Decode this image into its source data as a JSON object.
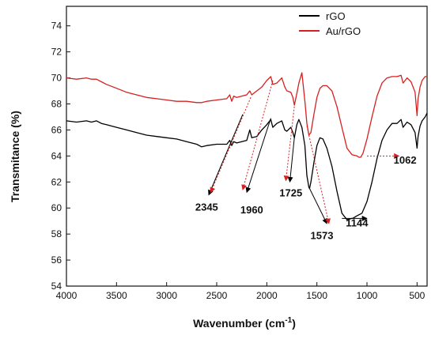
{
  "chart_data": {
    "type": "line",
    "xlabel": "Wavenumber (cm",
    "xlabel_sup": "-1",
    "xlabel_close": ")",
    "ylabel": "Transmitance (%)",
    "xlim": [
      4000,
      400
    ],
    "ylim": [
      54,
      75.5
    ],
    "x_reversed": true,
    "xticks": [
      4000,
      3500,
      3000,
      2500,
      2000,
      1500,
      1000,
      500
    ],
    "yticks": [
      54,
      56,
      58,
      60,
      62,
      64,
      66,
      68,
      70,
      72,
      74
    ],
    "grid": false,
    "legend_position": "top-right",
    "series": [
      {
        "name": "rGO",
        "color": "#000000",
        "x": [
          4000,
          3900,
          3800,
          3750,
          3700,
          3650,
          3600,
          3500,
          3400,
          3300,
          3200,
          3100,
          3000,
          2900,
          2800,
          2700,
          2650,
          2600,
          2500,
          2400,
          2370,
          2350,
          2330,
          2300,
          2200,
          2170,
          2150,
          2100,
          2050,
          2000,
          1960,
          1940,
          1900,
          1850,
          1820,
          1800,
          1760,
          1740,
          1725,
          1700,
          1680,
          1650,
          1620,
          1600,
          1580,
          1573,
          1560,
          1530,
          1500,
          1470,
          1440,
          1400,
          1350,
          1300,
          1250,
          1200,
          1150,
          1144,
          1100,
          1050,
          1000,
          950,
          900,
          850,
          800,
          750,
          700,
          660,
          640,
          600,
          560,
          520,
          500,
          490,
          470,
          450,
          420,
          400
        ],
        "y": [
          66.7,
          66.6,
          66.7,
          66.6,
          66.7,
          66.5,
          66.4,
          66.2,
          66.0,
          65.8,
          65.6,
          65.5,
          65.4,
          65.3,
          65.1,
          64.9,
          64.7,
          64.8,
          64.9,
          64.9,
          65.2,
          64.8,
          65.1,
          65.0,
          65.2,
          66.0,
          65.4,
          65.5,
          66.0,
          66.4,
          66.8,
          66.2,
          66.5,
          66.7,
          66.0,
          65.9,
          66.2,
          65.8,
          65.4,
          66.4,
          66.8,
          66.2,
          64.8,
          62.5,
          61.6,
          61.5,
          62.0,
          63.5,
          64.8,
          65.4,
          65.3,
          64.6,
          63.2,
          61.3,
          59.6,
          59.1,
          59.2,
          59.2,
          59.4,
          59.6,
          60.5,
          62.0,
          63.8,
          65.2,
          66.0,
          66.5,
          66.5,
          66.8,
          66.2,
          66.6,
          66.4,
          65.8,
          64.6,
          65.5,
          66.3,
          66.7,
          67.0,
          67.3
        ]
      },
      {
        "name": "Au/rGO",
        "color": "#d62020",
        "x": [
          4000,
          3900,
          3800,
          3750,
          3700,
          3650,
          3600,
          3500,
          3400,
          3300,
          3200,
          3100,
          3000,
          2900,
          2800,
          2700,
          2650,
          2600,
          2500,
          2400,
          2370,
          2350,
          2330,
          2300,
          2200,
          2170,
          2150,
          2100,
          2050,
          2000,
          1960,
          1940,
          1900,
          1850,
          1820,
          1800,
          1760,
          1740,
          1725,
          1700,
          1680,
          1650,
          1620,
          1600,
          1580,
          1560,
          1530,
          1500,
          1470,
          1440,
          1400,
          1350,
          1300,
          1250,
          1200,
          1150,
          1100,
          1080,
          1062,
          1040,
          1000,
          950,
          900,
          850,
          800,
          750,
          700,
          660,
          640,
          600,
          560,
          520,
          500,
          490,
          470,
          450,
          420,
          400
        ],
        "y": [
          70.0,
          69.9,
          70.0,
          69.9,
          69.9,
          69.7,
          69.5,
          69.2,
          68.9,
          68.7,
          68.5,
          68.4,
          68.3,
          68.2,
          68.2,
          68.1,
          68.1,
          68.2,
          68.3,
          68.4,
          68.7,
          68.2,
          68.6,
          68.5,
          68.7,
          69.0,
          68.7,
          69.0,
          69.3,
          69.8,
          70.1,
          69.5,
          69.6,
          70.0,
          69.3,
          69.0,
          68.9,
          68.5,
          67.9,
          68.8,
          69.6,
          70.4,
          68.2,
          66.5,
          65.6,
          65.8,
          67.2,
          68.5,
          69.2,
          69.4,
          69.4,
          69.0,
          67.8,
          66.2,
          64.6,
          64.1,
          64.0,
          63.9,
          63.9,
          64.2,
          65.3,
          67.0,
          68.6,
          69.6,
          70.0,
          70.1,
          70.1,
          70.2,
          69.6,
          70.0,
          69.7,
          68.9,
          67.1,
          68.4,
          69.3,
          69.8,
          70.1,
          70.1
        ]
      }
    ],
    "annotations": [
      {
        "text": "2345",
        "label_x": 2600,
        "label_y": 59.8
      },
      {
        "text": "1960",
        "label_x": 2150,
        "label_y": 59.6
      },
      {
        "text": "1725",
        "label_x": 1760,
        "label_y": 60.9
      },
      {
        "text": "1573",
        "label_x": 1450,
        "label_y": 57.6
      },
      {
        "text": "1144",
        "label_x": 1100,
        "label_y": 58.6
      },
      {
        "text": "1062",
        "label_x": 620,
        "label_y": 63.4
      }
    ],
    "arrows": [
      {
        "from": [
          2240,
          67.2
        ],
        "to": [
          2580,
          61.0
        ],
        "color": "#000000"
      },
      {
        "from": [
          2160,
          68.5
        ],
        "to": [
          2560,
          61.2
        ],
        "color": "#d62020"
      },
      {
        "from": [
          1960,
          66.9
        ],
        "to": [
          2200,
          61.2
        ],
        "color": "#000000"
      },
      {
        "from": [
          1940,
          69.8
        ],
        "to": [
          2240,
          61.4
        ],
        "color": "#d62020"
      },
      {
        "from": [
          1725,
          65.4
        ],
        "to": [
          1770,
          62.0
        ],
        "color": "#000000"
      },
      {
        "from": [
          1725,
          67.8
        ],
        "to": [
          1810,
          62.1
        ],
        "color": "#d62020"
      },
      {
        "from": [
          1573,
          61.5
        ],
        "to": [
          1400,
          58.8
        ],
        "color": "#000000"
      },
      {
        "from": [
          1600,
          66.3
        ],
        "to": [
          1380,
          58.8
        ],
        "color": "#d62020"
      },
      {
        "from": [
          1250,
          59.2
        ],
        "to": [
          1000,
          59.2
        ],
        "color": "#000000"
      },
      {
        "from": [
          1000,
          64.0
        ],
        "to": [
          680,
          64.0
        ],
        "color": "#d62020"
      }
    ]
  }
}
